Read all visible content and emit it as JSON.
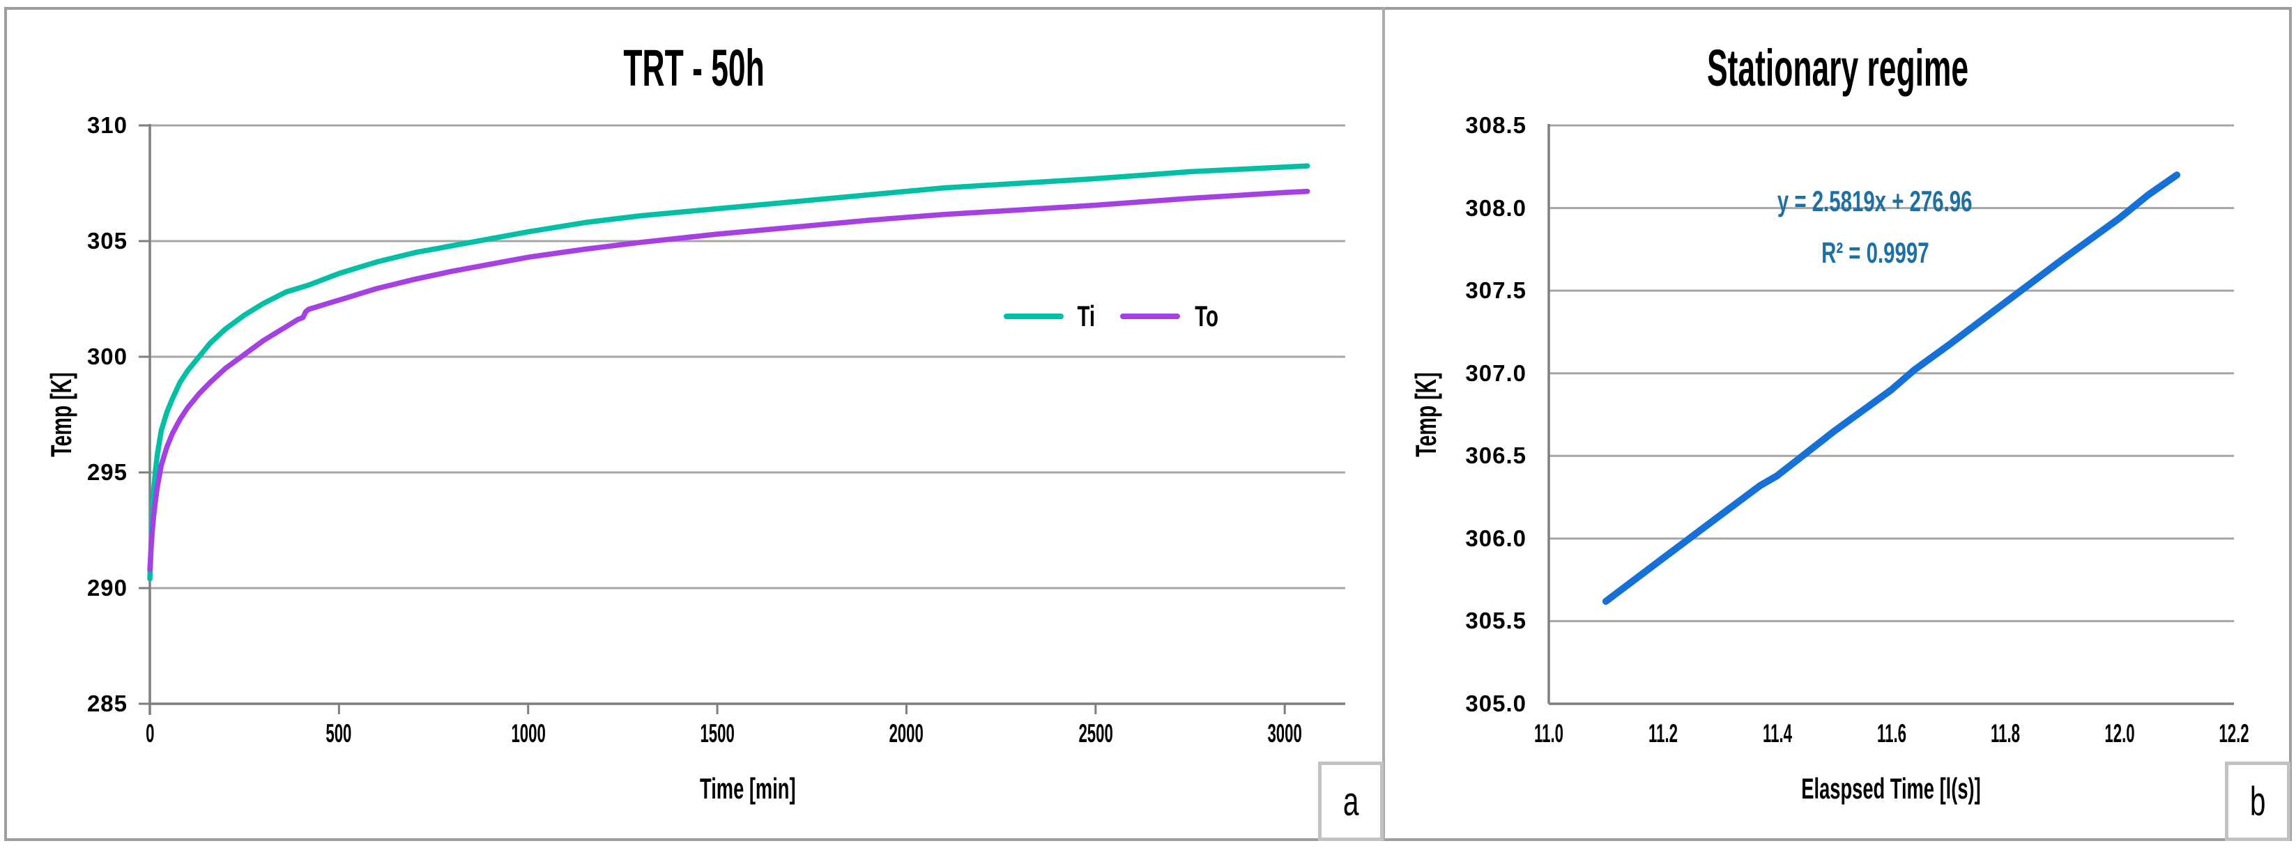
{
  "figure": {
    "panel_a_label": "a",
    "panel_b_label": "b"
  },
  "colors": {
    "grid": "#a6a6a6",
    "axis": "#7f7f7f",
    "ti_teal": "#00bfa4",
    "to_purple": "#a440e4",
    "trend_blue": "#1570d7",
    "equation_text": "#1f6fa5"
  },
  "chart_data": [
    {
      "type": "line",
      "title": "TRT - 50h",
      "xlabel": "Time [min]",
      "ylabel": "Temp [K]",
      "xlim": [
        0,
        3160
      ],
      "ylim": [
        285,
        310
      ],
      "xticks": [
        "0",
        "500",
        "1000",
        "1500",
        "2000",
        "2500",
        "3000"
      ],
      "yticks": [
        "285",
        "290",
        "295",
        "300",
        "305",
        "310"
      ],
      "grid": "horizontal",
      "legend_position": "middle-right",
      "legend": [
        "Ti",
        "To"
      ],
      "series": [
        {
          "name": "Ti",
          "color": "#00bfa4",
          "points": [
            [
              0,
              290.4
            ],
            [
              2,
              291.3
            ],
            [
              4,
              292.3
            ],
            [
              7,
              293.4
            ],
            [
              10,
              294.2
            ],
            [
              15,
              295.1
            ],
            [
              20,
              295.8
            ],
            [
              30,
              296.8
            ],
            [
              45,
              297.6
            ],
            [
              60,
              298.2
            ],
            [
              80,
              298.9
            ],
            [
              100,
              299.4
            ],
            [
              130,
              300.0
            ],
            [
              160,
              300.6
            ],
            [
              200,
              301.2
            ],
            [
              250,
              301.8
            ],
            [
              300,
              302.3
            ],
            [
              360,
              302.8
            ],
            [
              420,
              303.1
            ],
            [
              500,
              303.6
            ],
            [
              600,
              304.1
            ],
            [
              700,
              304.5
            ],
            [
              800,
              304.8
            ],
            [
              900,
              305.1
            ],
            [
              1000,
              305.4
            ],
            [
              1150,
              305.8
            ],
            [
              1300,
              306.1
            ],
            [
              1500,
              306.4
            ],
            [
              1700,
              306.7
            ],
            [
              1900,
              307.0
            ],
            [
              2100,
              307.3
            ],
            [
              2300,
              307.5
            ],
            [
              2500,
              307.7
            ],
            [
              2750,
              308.0
            ],
            [
              3000,
              308.2
            ],
            [
              3060,
              308.25
            ]
          ]
        },
        {
          "name": "To",
          "color": "#a440e4",
          "points": [
            [
              0,
              290.8
            ],
            [
              3,
              291.6
            ],
            [
              6,
              292.4
            ],
            [
              10,
              293.1
            ],
            [
              15,
              293.8
            ],
            [
              20,
              294.4
            ],
            [
              30,
              295.3
            ],
            [
              45,
              296.1
            ],
            [
              60,
              296.7
            ],
            [
              80,
              297.3
            ],
            [
              100,
              297.8
            ],
            [
              130,
              298.4
            ],
            [
              160,
              298.9
            ],
            [
              200,
              299.5
            ],
            [
              250,
              300.1
            ],
            [
              300,
              300.7
            ],
            [
              350,
              301.2
            ],
            [
              390,
              301.6
            ],
            [
              405,
              301.7
            ],
            [
              412,
              301.95
            ],
            [
              420,
              302.05
            ],
            [
              440,
              302.15
            ],
            [
              470,
              302.3
            ],
            [
              500,
              302.45
            ],
            [
              600,
              302.95
            ],
            [
              700,
              303.35
            ],
            [
              800,
              303.7
            ],
            [
              900,
              304.0
            ],
            [
              1000,
              304.3
            ],
            [
              1150,
              304.65
            ],
            [
              1300,
              304.95
            ],
            [
              1500,
              305.3
            ],
            [
              1700,
              305.6
            ],
            [
              1900,
              305.9
            ],
            [
              2100,
              306.15
            ],
            [
              2300,
              306.35
            ],
            [
              2500,
              306.55
            ],
            [
              2750,
              306.85
            ],
            [
              3000,
              307.1
            ],
            [
              3060,
              307.15
            ]
          ]
        }
      ]
    },
    {
      "type": "line",
      "title": "Stationary regime",
      "xlabel": "Elaspsed Time [l(s)]",
      "ylabel": "Temp [K]",
      "xlim": [
        11.0,
        12.2
      ],
      "ylim": [
        305.0,
        308.5
      ],
      "xticks": [
        "11.0",
        "11.2",
        "11.4",
        "11.6",
        "11.8",
        "12.0",
        "12.2"
      ],
      "yticks": [
        "305.0",
        "305.5",
        "306.0",
        "306.5",
        "307.0",
        "307.5",
        "308.0",
        "308.5"
      ],
      "grid": "horizontal",
      "annotation": {
        "line1": "y = 2.5819x + 276.96",
        "line2": "R² = 0.9997",
        "color": "#1f6fa5"
      },
      "series": [
        {
          "name": "trendline",
          "color": "#1570d7",
          "points": [
            [
              11.1,
              305.62
            ],
            [
              11.2,
              305.88
            ],
            [
              11.3,
              306.14
            ],
            [
              11.37,
              306.32
            ],
            [
              11.4,
              306.38
            ],
            [
              11.5,
              306.65
            ],
            [
              11.6,
              306.9
            ],
            [
              11.64,
              307.02
            ],
            [
              11.7,
              307.17
            ],
            [
              11.8,
              307.43
            ],
            [
              11.9,
              307.69
            ],
            [
              12.0,
              307.94
            ],
            [
              12.05,
              308.08
            ],
            [
              12.1,
              308.2
            ]
          ]
        }
      ]
    }
  ]
}
